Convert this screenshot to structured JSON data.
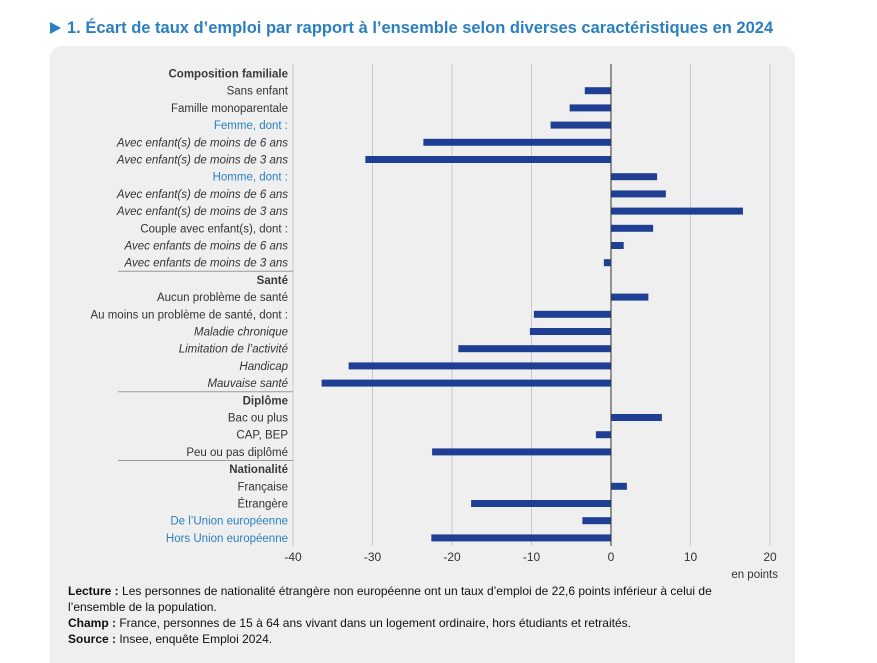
{
  "title": "1. Écart de taux d’emploi par rapport à l’ensemble selon diverses caractéristiques en 2024",
  "colors": {
    "title": "#2a7fc1",
    "bar": "#1e3f93",
    "highlight_label": "#2a7fc1",
    "panel": "#efefef"
  },
  "chart_data": {
    "type": "bar",
    "orientation": "horizontal",
    "unit": "en points",
    "xlim": [
      -40,
      20
    ],
    "xticks": [
      -40,
      -30,
      -20,
      -10,
      0,
      10,
      20
    ],
    "grid": true,
    "rows": [
      {
        "label": "Composition familiale",
        "style": "header",
        "value": null
      },
      {
        "label": "Sans enfant",
        "style": "normal",
        "value": -3.3
      },
      {
        "label": "Famille monoparentale",
        "style": "normal",
        "value": -5.2
      },
      {
        "label": "Femme, dont :",
        "style": "blue",
        "value": -7.6
      },
      {
        "label": "Avec enfant(s) de moins de 6 ans",
        "style": "italic",
        "value": -23.6
      },
      {
        "label": "Avec enfant(s) de moins de 3 ans",
        "style": "italic",
        "value": -30.9
      },
      {
        "label": "Homme, dont :",
        "style": "blue",
        "value": 5.8
      },
      {
        "label": "Avec enfant(s) de moins de 6 ans",
        "style": "italic",
        "value": 6.9
      },
      {
        "label": "Avec enfant(s) de moins de 3 ans",
        "style": "italic",
        "value": 16.6
      },
      {
        "label": "Couple avec enfant(s), dont :",
        "style": "normal",
        "value": 5.3
      },
      {
        "label": "Avec enfants de moins de 6 ans",
        "style": "italic",
        "value": 1.6
      },
      {
        "label": "Avec enfants de moins de 3 ans",
        "style": "italic",
        "value": -0.9
      },
      {
        "label": "Santé",
        "style": "header",
        "value": null
      },
      {
        "label": "Aucun problème de santé",
        "style": "normal",
        "value": 4.7
      },
      {
        "label": "Au moins un problème de santé, dont :",
        "style": "normal",
        "value": -9.7
      },
      {
        "label": "Maladie chronique",
        "style": "italic",
        "value": -10.2
      },
      {
        "label": "Limitation de l’activité",
        "style": "italic",
        "value": -19.2
      },
      {
        "label": "Handicap",
        "style": "italic",
        "value": -33.0
      },
      {
        "label": "Mauvaise santé",
        "style": "italic",
        "value": -36.4
      },
      {
        "label": "Diplôme",
        "style": "header",
        "value": null
      },
      {
        "label": "Bac ou plus",
        "style": "normal",
        "value": 6.4
      },
      {
        "label": "CAP, BEP",
        "style": "normal",
        "value": -1.9
      },
      {
        "label": "Peu ou pas diplômé",
        "style": "normal",
        "value": -22.5
      },
      {
        "label": "Nationalité",
        "style": "header",
        "value": null
      },
      {
        "label": "Française",
        "style": "normal",
        "value": 2.0
      },
      {
        "label": "Étrangère",
        "style": "normal",
        "value": -17.6
      },
      {
        "label": "De l’Union européenne",
        "style": "blue",
        "value": -3.6
      },
      {
        "label": "Hors Union européenne",
        "style": "blue",
        "value": -22.6
      }
    ]
  },
  "notes": {
    "lecture_label": "Lecture :",
    "lecture_text": " Les personnes de nationalité étrangère non européenne ont un taux d’emploi de 22,6 points inférieur à celui de l’ensemble de la population.",
    "champ_label": "Champ :",
    "champ_text": " France, personnes de 15 à 64 ans vivant dans un logement ordinaire, hors étudiants et retraités.",
    "source_label": "Source :",
    "source_text": " Insee, enquête Emploi 2024."
  }
}
